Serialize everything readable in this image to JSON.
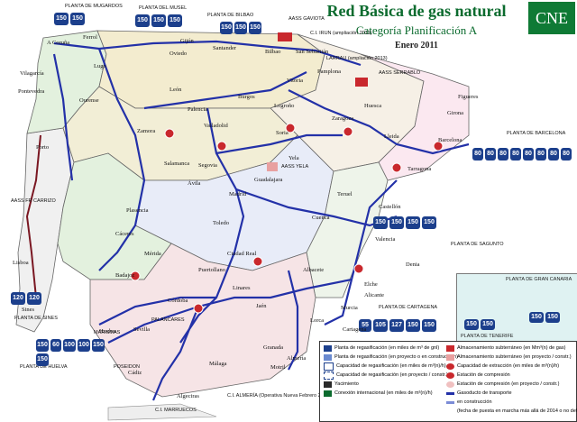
{
  "header": {
    "title": "Red Básica de gas natural",
    "subtitle": "Categoría Planificación A",
    "date": "Enero 2011",
    "logo": "CNE"
  },
  "colors": {
    "sea": "#ffffff",
    "land_north": "#f3eccf",
    "land_center": "#e8ecf8",
    "land_south": "#f6e4e6",
    "land_west": "#e3f1de",
    "pipeline": "#2331a8",
    "pipeline_planned": "#6b0f1a",
    "legend_green": "#0b6b2e",
    "brand_green": "#0f7a35"
  },
  "plants": [
    {
      "name": "PLANTA DE MUGARDOS",
      "tanks": [
        "150",
        "150"
      ]
    },
    {
      "name": "PLANTA DEL MUSEL",
      "tanks": [
        "150",
        "150",
        "150"
      ]
    },
    {
      "name": "PLANTA DE BILBAO",
      "tanks": [
        "150",
        "150",
        "150"
      ]
    },
    {
      "name": "PLANTA DE BARCELONA",
      "tanks": [
        "80",
        "80",
        "80",
        "80",
        "80",
        "80",
        "80",
        "80"
      ]
    },
    {
      "name": "PLANTA DE SAGUNTO",
      "tanks": [
        "150",
        "150",
        "150",
        "150"
      ]
    },
    {
      "name": "PLANTA DE CARTAGENA",
      "tanks": [
        "55",
        "105",
        "127",
        "150",
        "150"
      ]
    },
    {
      "name": "PLANTA DE HUELVA",
      "tanks": [
        "150",
        "60",
        "100",
        "100",
        "150",
        "150"
      ]
    },
    {
      "name": "PLANTA DE SINES",
      "tanks": [
        "120",
        "120"
      ]
    },
    {
      "name": "PLANTA DE GRAN CANARIA",
      "tanks": [
        "150",
        "150"
      ]
    },
    {
      "name": "PLANTA DE TENERIFE",
      "tanks": [
        "150",
        "150"
      ]
    }
  ],
  "connections": [
    "AASS GAVIOTA",
    "C.I. IRUN (ampliación 2011)",
    "LARRAU (ampliación 2013)",
    "AASS SERRABLO",
    "AASS FR CARRIZO",
    "MARISMAS",
    "POSEIDON",
    "PALANCARES",
    "C.I. MARRUECOS",
    "C.I. ALMERÍA (Operativa Nueva Febrero 2011)",
    "AASS YELA"
  ],
  "cities": [
    "A Coruña",
    "Ferrol",
    "Lugo",
    "Oviedo",
    "Gijón",
    "Santander",
    "Bilbao",
    "Vitoria",
    "San Sebastián",
    "Pamplona",
    "Logroño",
    "Burgos",
    "León",
    "Palencia",
    "Valladolid",
    "Zamora",
    "Salamanca",
    "Segovia",
    "Ávila",
    "Madrid",
    "Guadalajara",
    "Soria",
    "Zaragoza",
    "Huesca",
    "Lleida",
    "Barcelona",
    "Tarragona",
    "Castellón",
    "Teruel",
    "Cuenca",
    "Toledo",
    "Ciudad Real",
    "Albacete",
    "Valencia",
    "Alicante",
    "Murcia",
    "Cartagena",
    "Almería",
    "Granada",
    "Jaén",
    "Córdoba",
    "Sevilla",
    "Huelva",
    "Cádiz",
    "Málaga",
    "Algeciras",
    "Badajoz",
    "Cáceres",
    "Ourense",
    "Pontevedra",
    "Lisboa",
    "Sines",
    "Porto",
    "Mérida",
    "Plasencia",
    "Puertollano",
    "Linares",
    "Motril",
    "Lorca",
    "Elche",
    "Denia",
    "Yela",
    "Vilagarcía",
    "Girona",
    "Figueres"
  ],
  "legend": {
    "col1": [
      {
        "label": "Planta de regasificación (en miles de m³ de gnl)",
        "color": "#1c3f8c"
      },
      {
        "label": "Planta de regasificación (en proyecto o en construcción)",
        "color": "#6a8ad0"
      },
      {
        "label": "Capacidad de regasificación (en miles de m³(n)/h)",
        "color": "#ffffff"
      },
      {
        "label": "Capacidad de regasificación (en proyecto / constr.)",
        "color": "#ffffff"
      },
      {
        "label": "Yacimiento",
        "color": "#2a2a2a"
      },
      {
        "label": "Conexión internacional (en miles de m³(n)/h)",
        "color": "#0b6b2e"
      }
    ],
    "col2": [
      {
        "label": "Almacenamiento subterráneo (en Mm³(n) de gas)",
        "color": "#c9282d"
      },
      {
        "label": "Almacenamiento subterráneo (en proyecto / constr.)",
        "color": "#e8a0a0"
      },
      {
        "label": "Capacidad de extracción (en miles de m³(n)/h)",
        "color": "#c9282d"
      },
      {
        "label": "Estación de compresión",
        "color": "#c9282d"
      },
      {
        "label": "Estación de compresión (en proyecto / constr.)",
        "color": "#f0c0c0"
      },
      {
        "label": "Gasoducto de transporte",
        "color": "#2331a8"
      },
      {
        "label": "en construcción",
        "color": "#7b8cd6"
      },
      {
        "label": "(fecha de puesta en marcha más allá de 2014 o no definida)",
        "color": "#ffffff"
      }
    ]
  }
}
